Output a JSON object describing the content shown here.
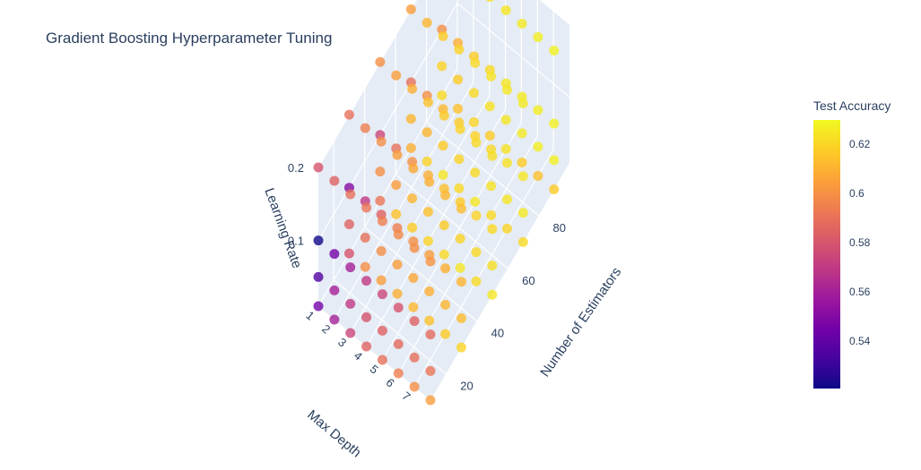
{
  "title": "Gradient Boosting Hyperparameter Tuning",
  "colorbar": {
    "title": "Test Accuracy",
    "ticks": [
      "0.54",
      "0.56",
      "0.58",
      "0.6",
      "0.62"
    ],
    "colorscale": [
      "#0d0887",
      "#46039f",
      "#7201a8",
      "#9c179e",
      "#bd3786",
      "#d8576b",
      "#ed7953",
      "#fb9f3a",
      "#fdca26",
      "#f0f921"
    ],
    "range": [
      0.52,
      0.63
    ]
  },
  "chart_data": {
    "type": "scatter3d",
    "axes": {
      "x": {
        "label": "Number of Estimators",
        "ticks": [
          "20",
          "40",
          "60",
          "80"
        ],
        "range": [
          10,
          100
        ]
      },
      "y": {
        "label": "Max Depth",
        "ticks": [
          "1",
          "2",
          "3",
          "4",
          "5",
          "6",
          "7"
        ],
        "range": [
          1,
          8
        ]
      },
      "z": {
        "label": "Learning Rate",
        "ticks": [
          "0.1",
          "0.2"
        ],
        "range": [
          0.01,
          0.2
        ]
      }
    },
    "grid": true,
    "grid_values": {
      "n_estimators": [
        10,
        30,
        50,
        70,
        90
      ],
      "max_depth": [
        1,
        2,
        3,
        4,
        5,
        6,
        7,
        8
      ],
      "learning_rate": [
        0.01,
        0.05,
        0.1,
        0.2
      ]
    },
    "accuracy_by_learning_rate": {
      "0.01": [
        [
          0.545,
          0.58,
          0.592,
          0.61,
          0.622
        ],
        [
          0.56,
          0.6,
          0.615,
          0.62,
          0.615
        ],
        [
          0.575,
          0.605,
          0.618,
          0.625,
          0.62
        ],
        [
          0.585,
          0.61,
          0.62,
          0.622,
          0.618
        ],
        [
          0.59,
          0.612,
          0.622,
          0.625,
          0.624
        ],
        [
          0.595,
          0.615,
          0.625,
          0.622,
          0.618
        ],
        [
          0.6,
          0.618,
          0.622,
          0.62,
          0.615
        ],
        [
          0.605,
          0.62,
          0.625,
          0.622,
          0.618
        ]
      ],
      "0.05": [
        [
          0.535,
          0.585,
          0.6,
          0.612,
          0.62
        ],
        [
          0.56,
          0.59,
          0.605,
          0.612,
          0.618
        ],
        [
          0.57,
          0.6,
          0.612,
          0.618,
          0.622
        ],
        [
          0.58,
          0.605,
          0.615,
          0.62,
          0.624
        ],
        [
          0.585,
          0.608,
          0.618,
          0.622,
          0.625
        ],
        [
          0.588,
          0.61,
          0.62,
          0.624,
          0.626
        ],
        [
          0.59,
          0.612,
          0.622,
          0.625,
          0.627
        ],
        [
          0.592,
          0.614,
          0.623,
          0.626,
          0.628
        ]
      ],
      "0.1": [
        [
          0.52,
          0.55,
          0.575,
          0.59,
          0.6
        ],
        [
          0.545,
          0.57,
          0.59,
          0.6,
          0.61
        ],
        [
          0.56,
          0.585,
          0.6,
          0.612,
          0.618
        ],
        [
          0.57,
          0.595,
          0.61,
          0.618,
          0.622
        ],
        [
          0.575,
          0.6,
          0.615,
          0.62,
          0.625
        ],
        [
          0.58,
          0.605,
          0.618,
          0.622,
          0.626
        ],
        [
          0.585,
          0.61,
          0.62,
          0.624,
          0.627
        ],
        [
          0.588,
          0.612,
          0.622,
          0.625,
          0.628
        ]
      ],
      "0.2": [
        [
          0.58,
          0.59,
          0.6,
          0.605,
          0.61
        ],
        [
          0.585,
          0.595,
          0.605,
          0.612,
          0.618
        ],
        [
          0.59,
          0.6,
          0.61,
          0.618,
          0.622
        ],
        [
          0.592,
          0.605,
          0.615,
          0.62,
          0.624
        ],
        [
          0.595,
          0.608,
          0.618,
          0.622,
          0.625
        ],
        [
          0.598,
          0.61,
          0.62,
          0.624,
          0.626
        ],
        [
          0.6,
          0.612,
          0.622,
          0.625,
          0.627
        ],
        [
          0.602,
          0.614,
          0.623,
          0.626,
          0.628
        ]
      ]
    },
    "marker_color_variable": "Test Accuracy"
  }
}
